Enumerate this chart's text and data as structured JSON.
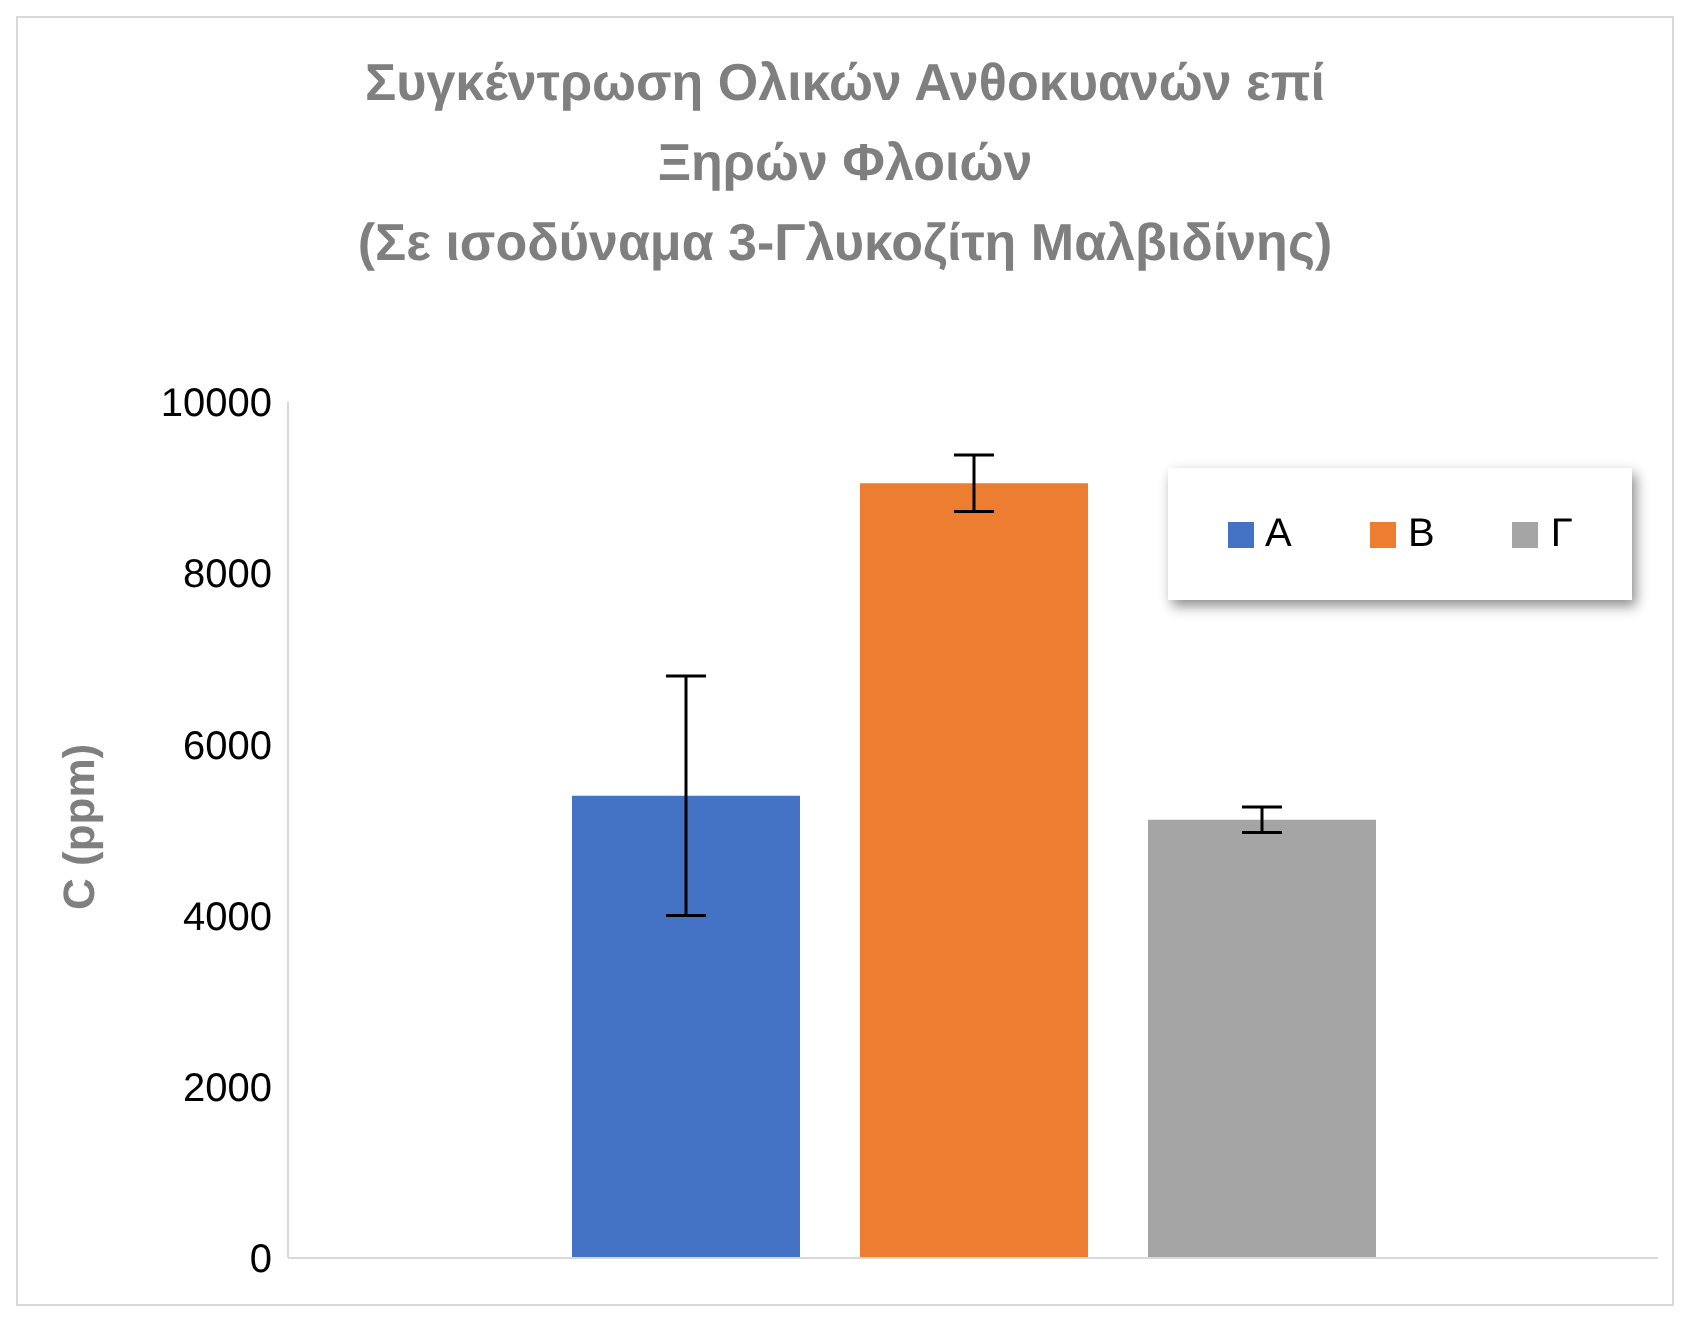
{
  "chart_data": {
    "type": "bar",
    "title": "Συγκέντρωση Ολικών Ανθοκυανών επί\nΞηρών Φλοιών\n(Σε ισοδύναμα 3-Γλυκοζίτη Μαλβιδίνης)",
    "ylabel": "C (ppm)",
    "categories": [
      null
    ],
    "series": [
      {
        "name": "Α",
        "color": "#4472c4",
        "values": [
          5400
        ],
        "errors": [
          1400
        ]
      },
      {
        "name": "Β",
        "color": "#ed7d31",
        "values": [
          9050
        ],
        "errors": [
          330
        ]
      },
      {
        "name": "Γ",
        "color": "#a5a5a5",
        "values": [
          5120
        ],
        "errors": [
          150
        ]
      }
    ],
    "ylim": [
      0,
      10000
    ],
    "yticks": [
      0,
      2000,
      4000,
      6000,
      8000,
      10000
    ],
    "grid": false,
    "legend": "top right"
  }
}
